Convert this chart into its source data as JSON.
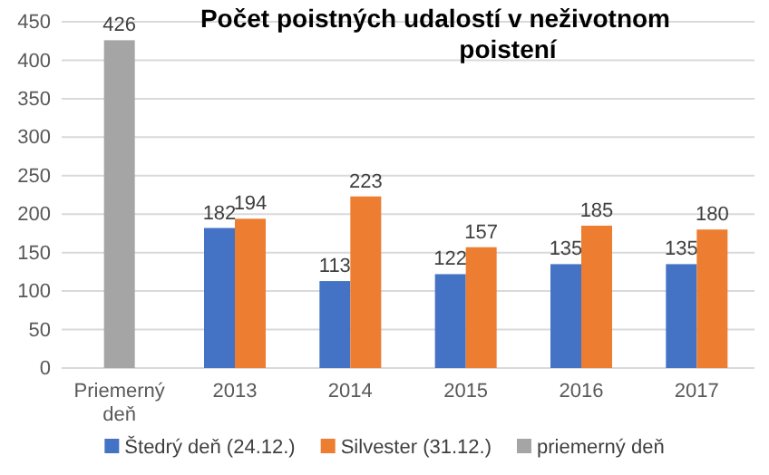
{
  "chart_data": {
    "type": "bar",
    "title": "Počet poistných udalostí v neživotnom poistení",
    "categories": [
      "Priemerný deň",
      "2013",
      "2014",
      "2015",
      "2016",
      "2017"
    ],
    "series": [
      {
        "name": "Štedrý deň (24.12.)",
        "color": "#4472c4",
        "values": [
          null,
          182,
          113,
          122,
          135,
          135
        ]
      },
      {
        "name": "Silvester (31.12.)",
        "color": "#ed7d31",
        "values": [
          null,
          194,
          223,
          157,
          185,
          180
        ]
      },
      {
        "name": "priemerný deň",
        "color": "#a5a5a5",
        "values": [
          426,
          null,
          null,
          null,
          null,
          null
        ]
      }
    ],
    "ylim": [
      0,
      450
    ],
    "yticks": [
      0,
      50,
      100,
      150,
      200,
      250,
      300,
      350,
      400,
      450
    ],
    "grid": "y",
    "legend": "bottom",
    "data_labels": true
  }
}
